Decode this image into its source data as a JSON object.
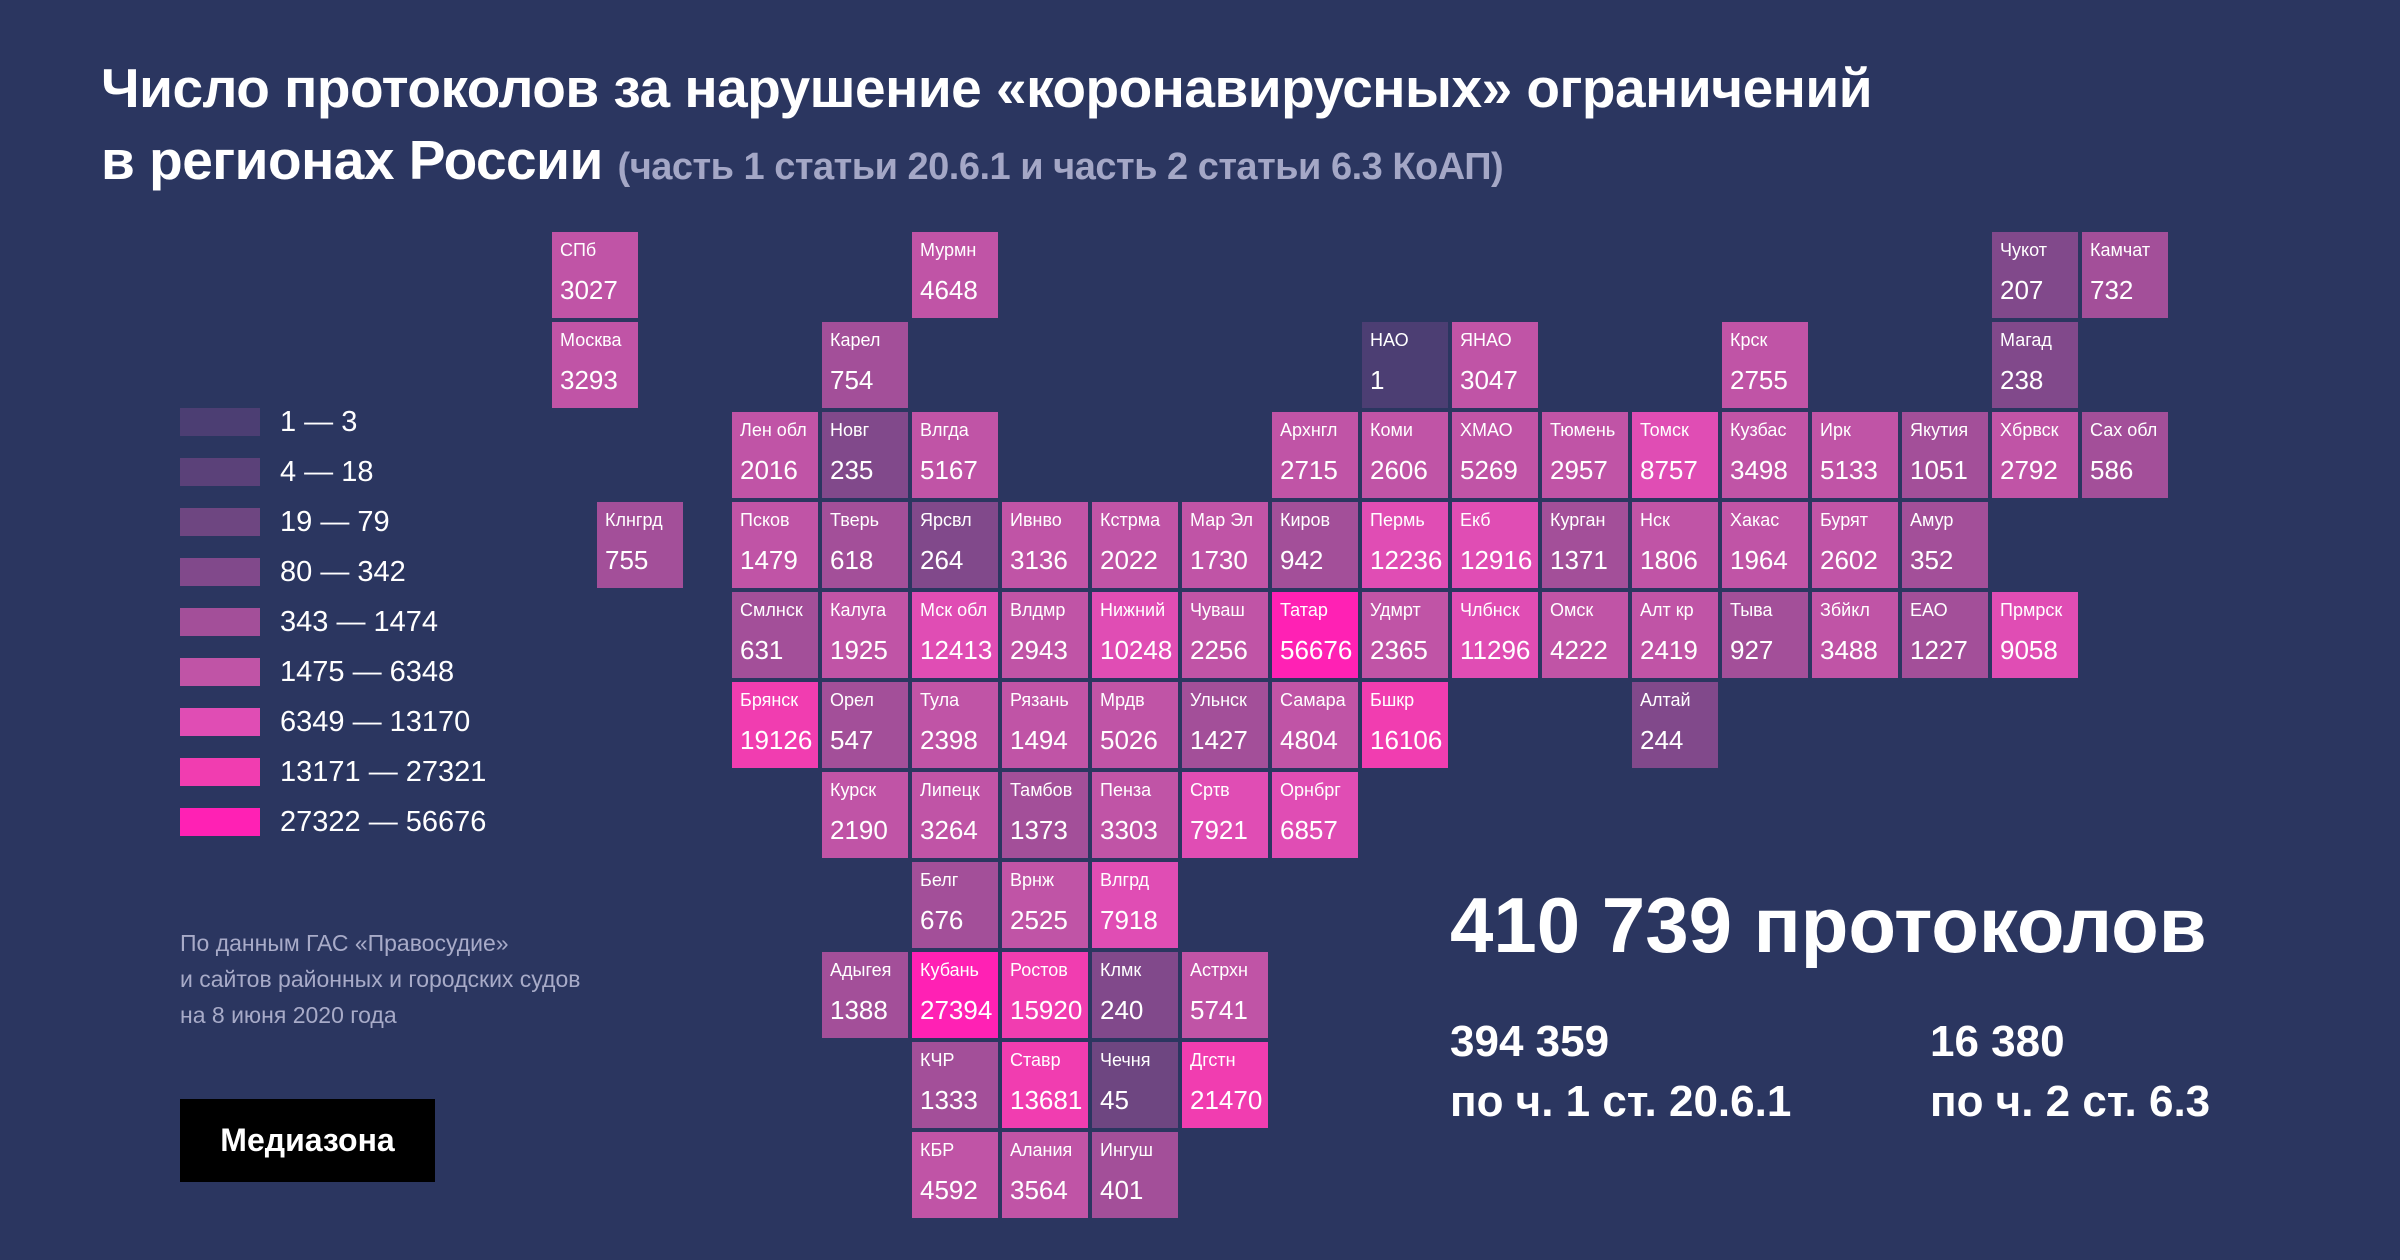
{
  "title": {
    "line1": "Число протоколов за нарушение «коронавирусных» ограничений",
    "line2": "в регионах России",
    "sub": "(часть 1 статьи 20.6.1 и часть 2 статьи 6.3 КоАП)"
  },
  "colors": {
    "background": "#2b3660",
    "bins": [
      "#4c3e73",
      "#5b4179",
      "#6e4681",
      "#81498b",
      "#a34f99",
      "#c054a6",
      "#e04db4",
      "#f13db0",
      "#ff21b4"
    ]
  },
  "legend": [
    {
      "label": "1 — 3",
      "bin": 0
    },
    {
      "label": "4 — 18",
      "bin": 1
    },
    {
      "label": "19 — 79",
      "bin": 2
    },
    {
      "label": "80 — 342",
      "bin": 3
    },
    {
      "label": "343 — 1474",
      "bin": 4
    },
    {
      "label": "1475 — 6348",
      "bin": 5
    },
    {
      "label": "6349 — 13170",
      "bin": 6
    },
    {
      "label": "13171 — 27321",
      "bin": 7
    },
    {
      "label": "27322 — 56676",
      "bin": 8
    }
  ],
  "regions": [
    {
      "name": "СПб",
      "value": "3027",
      "col": 0,
      "row": 0
    },
    {
      "name": "Москва",
      "value": "3293",
      "col": 0,
      "row": 1
    },
    {
      "name": "Клнгрд",
      "value": "755",
      "col": 0.5,
      "row": 3
    },
    {
      "name": "Мурмн",
      "value": "4648",
      "col": 4,
      "row": 0
    },
    {
      "name": "Карел",
      "value": "754",
      "col": 3,
      "row": 1
    },
    {
      "name": "НАО",
      "value": "1",
      "col": 9,
      "row": 1
    },
    {
      "name": "ЯНАО",
      "value": "3047",
      "col": 10,
      "row": 1
    },
    {
      "name": "Крск",
      "value": "2755",
      "col": 13,
      "row": 1
    },
    {
      "name": "Чукот",
      "value": "207",
      "col": 16,
      "row": 0
    },
    {
      "name": "Камчат",
      "value": "732",
      "col": 17,
      "row": 0
    },
    {
      "name": "Магад",
      "value": "238",
      "col": 16,
      "row": 1
    },
    {
      "name": "Лен обл",
      "value": "2016",
      "col": 2,
      "row": 2
    },
    {
      "name": "Новг",
      "value": "235",
      "col": 3,
      "row": 2
    },
    {
      "name": "Влгда",
      "value": "5167",
      "col": 4,
      "row": 2
    },
    {
      "name": "Архнгл",
      "value": "2715",
      "col": 8,
      "row": 2
    },
    {
      "name": "Коми",
      "value": "2606",
      "col": 9,
      "row": 2
    },
    {
      "name": "ХМАО",
      "value": "5269",
      "col": 10,
      "row": 2
    },
    {
      "name": "Тюмень",
      "value": "2957",
      "col": 11,
      "row": 2
    },
    {
      "name": "Томск",
      "value": "8757",
      "col": 12,
      "row": 2
    },
    {
      "name": "Кузбас",
      "value": "3498",
      "col": 13,
      "row": 2
    },
    {
      "name": "Ирк",
      "value": "5133",
      "col": 14,
      "row": 2
    },
    {
      "name": "Якутия",
      "value": "1051",
      "col": 15,
      "row": 2
    },
    {
      "name": "Хбрвск",
      "value": "2792",
      "col": 16,
      "row": 2
    },
    {
      "name": "Сах обл",
      "value": "586",
      "col": 17,
      "row": 2
    },
    {
      "name": "Псков",
      "value": "1479",
      "col": 2,
      "row": 3
    },
    {
      "name": "Тверь",
      "value": "618",
      "col": 3,
      "row": 3
    },
    {
      "name": "Ярсвл",
      "value": "264",
      "col": 4,
      "row": 3
    },
    {
      "name": "Ивнво",
      "value": "3136",
      "col": 5,
      "row": 3
    },
    {
      "name": "Кстрма",
      "value": "2022",
      "col": 6,
      "row": 3
    },
    {
      "name": "Мар Эл",
      "value": "1730",
      "col": 7,
      "row": 3
    },
    {
      "name": "Киров",
      "value": "942",
      "col": 8,
      "row": 3
    },
    {
      "name": "Пермь",
      "value": "12236",
      "col": 9,
      "row": 3
    },
    {
      "name": "Екб",
      "value": "12916",
      "col": 10,
      "row": 3
    },
    {
      "name": "Курган",
      "value": "1371",
      "col": 11,
      "row": 3
    },
    {
      "name": "Нск",
      "value": "1806",
      "col": 12,
      "row": 3
    },
    {
      "name": "Хакас",
      "value": "1964",
      "col": 13,
      "row": 3
    },
    {
      "name": "Бурят",
      "value": "2602",
      "col": 14,
      "row": 3
    },
    {
      "name": "Амур",
      "value": "352",
      "col": 15,
      "row": 3
    },
    {
      "name": "Смлнск",
      "value": "631",
      "col": 2,
      "row": 4
    },
    {
      "name": "Калуга",
      "value": "1925",
      "col": 3,
      "row": 4
    },
    {
      "name": "Мск обл",
      "value": "12413",
      "col": 4,
      "row": 4
    },
    {
      "name": "Влдмр",
      "value": "2943",
      "col": 5,
      "row": 4
    },
    {
      "name": "Нижний",
      "value": "10248",
      "col": 6,
      "row": 4
    },
    {
      "name": "Чуваш",
      "value": "2256",
      "col": 7,
      "row": 4
    },
    {
      "name": "Татар",
      "value": "56676",
      "col": 8,
      "row": 4
    },
    {
      "name": "Удмрт",
      "value": "2365",
      "col": 9,
      "row": 4
    },
    {
      "name": "Члбнск",
      "value": "11296",
      "col": 10,
      "row": 4
    },
    {
      "name": "Омск",
      "value": "4222",
      "col": 11,
      "row": 4
    },
    {
      "name": "Алт кр",
      "value": "2419",
      "col": 12,
      "row": 4
    },
    {
      "name": "Тыва",
      "value": "927",
      "col": 13,
      "row": 4
    },
    {
      "name": "Збйкл",
      "value": "3488",
      "col": 14,
      "row": 4
    },
    {
      "name": "ЕАО",
      "value": "1227",
      "col": 15,
      "row": 4
    },
    {
      "name": "Прмрск",
      "value": "9058",
      "col": 16,
      "row": 4
    },
    {
      "name": "Брянск",
      "value": "19126",
      "col": 2,
      "row": 5
    },
    {
      "name": "Орел",
      "value": "547",
      "col": 3,
      "row": 5
    },
    {
      "name": "Тула",
      "value": "2398",
      "col": 4,
      "row": 5
    },
    {
      "name": "Рязань",
      "value": "1494",
      "col": 5,
      "row": 5
    },
    {
      "name": "Мрдв",
      "value": "5026",
      "col": 6,
      "row": 5
    },
    {
      "name": "Ульнск",
      "value": "1427",
      "col": 7,
      "row": 5
    },
    {
      "name": "Самара",
      "value": "4804",
      "col": 8,
      "row": 5
    },
    {
      "name": "Бшкр",
      "value": "16106",
      "col": 9,
      "row": 5
    },
    {
      "name": "Алтай",
      "value": "244",
      "col": 12,
      "row": 5
    },
    {
      "name": "Курск",
      "value": "2190",
      "col": 3,
      "row": 6
    },
    {
      "name": "Липецк",
      "value": "3264",
      "col": 4,
      "row": 6
    },
    {
      "name": "Тамбов",
      "value": "1373",
      "col": 5,
      "row": 6
    },
    {
      "name": "Пенза",
      "value": "3303",
      "col": 6,
      "row": 6
    },
    {
      "name": "Срτв",
      "value": "7921",
      "col": 7,
      "row": 6
    },
    {
      "name": "Орнбрг",
      "value": "6857",
      "col": 8,
      "row": 6
    },
    {
      "name": "Белг",
      "value": "676",
      "col": 4,
      "row": 7
    },
    {
      "name": "Врнж",
      "value": "2525",
      "col": 5,
      "row": 7
    },
    {
      "name": "Влгрд",
      "value": "7918",
      "col": 6,
      "row": 7
    },
    {
      "name": "Адыгея",
      "value": "1388",
      "col": 3,
      "row": 8
    },
    {
      "name": "Кубань",
      "value": "27394",
      "col": 4,
      "row": 8
    },
    {
      "name": "Ростов",
      "value": "15920",
      "col": 5,
      "row": 8
    },
    {
      "name": "Клмк",
      "value": "240",
      "col": 6,
      "row": 8
    },
    {
      "name": "Астрхн",
      "value": "5741",
      "col": 7,
      "row": 8
    },
    {
      "name": "КЧР",
      "value": "1333",
      "col": 4,
      "row": 9
    },
    {
      "name": "Ставр",
      "value": "13681",
      "col": 5,
      "row": 9
    },
    {
      "name": "Чечня",
      "value": "45",
      "col": 6,
      "row": 9
    },
    {
      "name": "Дгстн",
      "value": "21470",
      "col": 7,
      "row": 9
    },
    {
      "name": "КБР",
      "value": "4592",
      "col": 4,
      "row": 10
    },
    {
      "name": "Алания",
      "value": "3564",
      "col": 5,
      "row": 10
    },
    {
      "name": "Ингуш",
      "value": "401",
      "col": 6,
      "row": 10
    }
  ],
  "source": {
    "line1": "По данным ГАС «Правосудие»",
    "line2": "и сайтов районных и городских судов",
    "line3": "на 8 июня 2020 года"
  },
  "logo": "Медиазона",
  "total": "410 739 протоколов",
  "stats": [
    {
      "num": "394 359",
      "cap": "по ч. 1 ст. 20.6.1"
    },
    {
      "num": "16 380",
      "cap": "по ч. 2 ст. 6.3"
    }
  ]
}
